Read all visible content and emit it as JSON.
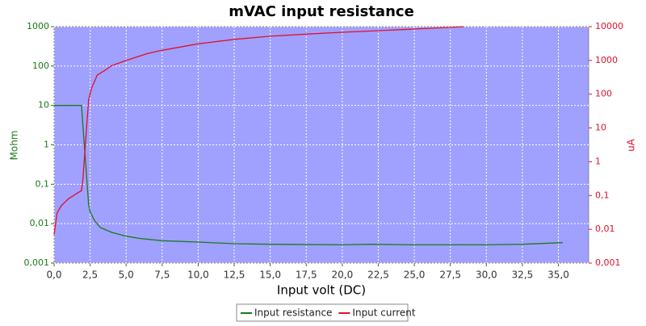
{
  "chart_data": {
    "type": "line",
    "title": "mVAC input resistance",
    "xlabel": "Input volt (DC)",
    "ylabel": "Mohm",
    "y2label": "uA",
    "xlim": [
      0,
      37.1
    ],
    "xticks": [
      {
        "value": 0,
        "label": "0,0"
      },
      {
        "value": 2.5,
        "label": "2,5"
      },
      {
        "value": 5,
        "label": "5,0"
      },
      {
        "value": 7.5,
        "label": "7,5"
      },
      {
        "value": 10,
        "label": "10,0"
      },
      {
        "value": 12.5,
        "label": "12,5"
      },
      {
        "value": 15,
        "label": "15,0"
      },
      {
        "value": 17.5,
        "label": "17,5"
      },
      {
        "value": 20,
        "label": "20,0"
      },
      {
        "value": 22.5,
        "label": "22,5"
      },
      {
        "value": 25,
        "label": "25,0"
      },
      {
        "value": 27.5,
        "label": "27,5"
      },
      {
        "value": 30,
        "label": "30,0"
      },
      {
        "value": 32.5,
        "label": "32,5"
      },
      {
        "value": 35,
        "label": "35,0"
      }
    ],
    "ylim": [
      0.001,
      1000
    ],
    "ylog": true,
    "yticks": [
      {
        "value": 0.001,
        "label": "0,001"
      },
      {
        "value": 0.01,
        "label": "0,01"
      },
      {
        "value": 0.1,
        "label": "0,1"
      },
      1,
      10,
      100,
      1000
    ],
    "y2lim": [
      0.001,
      10000
    ],
    "y2log": true,
    "y2ticks": [
      {
        "value": 0.001,
        "label": "0,001"
      },
      {
        "value": 0.01,
        "label": "0,01"
      },
      {
        "value": 0.1,
        "label": "0,1"
      },
      1,
      10,
      100,
      1000,
      10000
    ],
    "grid": true,
    "legend": "bottom",
    "series": [
      {
        "name": "Input resistance",
        "color": "#1a7a1a",
        "x": [
          0,
          1.9,
          2.0,
          2.2,
          2.4,
          2.5,
          2.8,
          3.2,
          4,
          5,
          6,
          7.5,
          10,
          12.5,
          15,
          20,
          22,
          25,
          30,
          32.5,
          35.3
        ],
        "values": [
          10,
          10,
          3,
          0.3,
          0.03,
          0.02,
          0.012,
          0.008,
          0.006,
          0.0048,
          0.0042,
          0.0037,
          0.0034,
          0.0031,
          0.003,
          0.0029,
          0.003,
          0.0029,
          0.0029,
          0.003,
          0.0033
        ]
      },
      {
        "name": "Input current",
        "color": "#e0102a",
        "axis": "y2",
        "x": [
          0,
          0.2,
          0.5,
          1,
          1.5,
          1.9,
          2.0,
          2.2,
          2.4,
          2.6,
          3,
          3.5,
          4,
          5,
          6.5,
          7.5,
          10,
          12.5,
          15,
          17.5,
          20,
          22.5,
          25,
          27.5,
          28.4
        ],
        "values": [
          0.007,
          0.03,
          0.05,
          0.08,
          0.11,
          0.14,
          0.3,
          5,
          70,
          150,
          370,
          500,
          700,
          1000,
          1600,
          2000,
          3100,
          4200,
          5200,
          6000,
          6800,
          7600,
          8500,
          9500,
          10000
        ]
      }
    ]
  }
}
